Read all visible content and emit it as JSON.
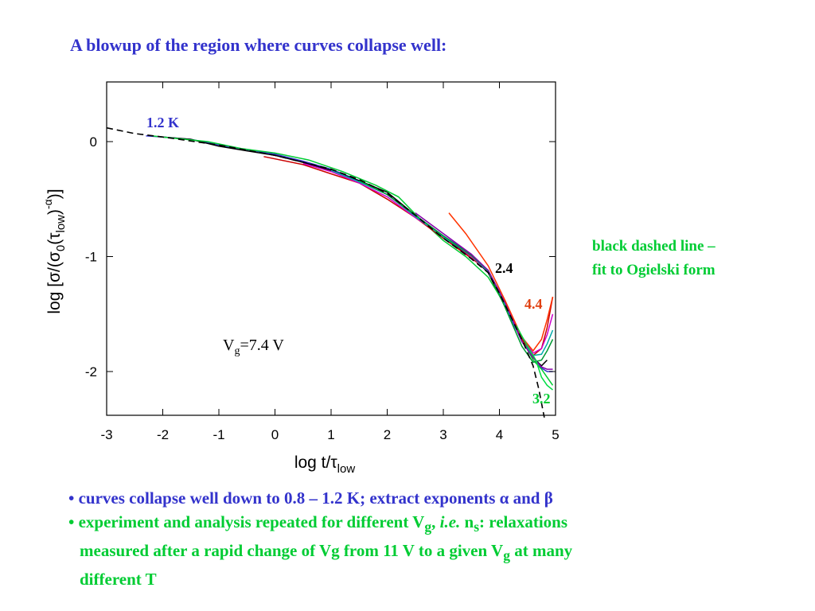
{
  "title": "A blowup of the region where curves collapse well:",
  "note": {
    "line1": "black dashed line –",
    "line2": "fit to Ogielski form"
  },
  "bullets": {
    "b1": {
      "prefix": "• curves collapse well down to 0.8 – 1.2 K; extract exponents ",
      "alpha": "α",
      "mid": " and ",
      "beta": "β"
    },
    "b2": {
      "p1": "• experiment and analysis repeated for different V",
      "sub1": "g",
      "p2": ", ",
      "ie": "i.e.",
      "p3": " n",
      "sub2": "s",
      "p4": ": relaxations",
      "l2a": "measured after a rapid change of Vg from 11 V to a given V",
      "l2sub": "g",
      "l2b": " at many",
      "l3": "different T"
    }
  },
  "chart_data": {
    "type": "line",
    "xlabel": {
      "main": "log t/",
      "tau": "τ",
      "sub": "low"
    },
    "ylabel": {
      "p1": "log [",
      "sigma": "σ",
      "p2": "/(",
      "sigma0": "σ",
      "sub0": "0",
      "p3": "(",
      "tau": "τ",
      "sublow": "low",
      "p4": ")",
      "sup": "-α",
      "p5": ")]"
    },
    "xlim": [
      -3,
      5
    ],
    "ylim": [
      -2.4,
      0.5
    ],
    "xticks": [
      "-3",
      "-2",
      "-1",
      "0",
      "1",
      "2",
      "3",
      "4",
      "5"
    ],
    "yticks": [
      "0",
      "-1",
      "-2"
    ],
    "grid": false,
    "annotations": {
      "t12": "1.2 K",
      "t24": "2.4",
      "t44": "4.4",
      "t32": "3.2",
      "vg_main": "V",
      "vg_sub": "g",
      "vg_rest": "=7.4 V"
    },
    "colors": {
      "t12": "#3333cc",
      "t24": "#000000",
      "t44": "#e04010",
      "t32": "#00cc33"
    },
    "fit": {
      "name": "Ogielski fit",
      "color": "#000000",
      "style": "dashed",
      "x": [
        -3.0,
        -2.5,
        -2.0,
        -1.0,
        0.0,
        1.0,
        1.5,
        2.0,
        2.5,
        3.0,
        3.5,
        3.8,
        4.0,
        4.2,
        4.4,
        4.6,
        4.7,
        4.8
      ],
      "y": [
        0.12,
        0.07,
        0.04,
        -0.03,
        -0.12,
        -0.24,
        -0.33,
        -0.45,
        -0.64,
        -0.84,
        -1.02,
        -1.14,
        -1.32,
        -1.52,
        -1.72,
        -1.95,
        -2.15,
        -2.4
      ]
    },
    "series": [
      {
        "color": "#3333cc",
        "x": [
          -2.3,
          -2.0,
          -1.5,
          -1.0,
          -0.5,
          0.0,
          0.5,
          1.0,
          1.5,
          2.0,
          2.5,
          3.0,
          3.5,
          3.8,
          4.0,
          4.2,
          4.4,
          4.6,
          4.75,
          4.85,
          4.95
        ],
        "y": [
          0.05,
          0.04,
          0.02,
          -0.03,
          -0.07,
          -0.11,
          -0.17,
          -0.24,
          -0.34,
          -0.46,
          -0.64,
          -0.82,
          -0.98,
          -1.14,
          -1.3,
          -1.55,
          -1.72,
          -1.87,
          -1.97,
          -2.0,
          -2.0
        ]
      },
      {
        "color": "#000000",
        "x": [
          -2.0,
          -1.5,
          -1.0,
          -0.5,
          0.0,
          0.5,
          1.0,
          1.5,
          2.0,
          2.5,
          3.0,
          3.5,
          3.8,
          4.0,
          4.2,
          4.4,
          4.6,
          4.75,
          4.85
        ],
        "y": [
          0.04,
          0.02,
          -0.04,
          -0.08,
          -0.12,
          -0.18,
          -0.25,
          -0.34,
          -0.44,
          -0.64,
          -0.84,
          -1.0,
          -1.14,
          -1.34,
          -1.52,
          -1.7,
          -1.88,
          -1.95,
          -1.9
        ]
      },
      {
        "color": "#00cc33",
        "x": [
          -2.2,
          -1.8,
          -1.2,
          -0.6,
          0.0,
          0.6,
          1.2,
          1.8,
          2.2,
          2.6,
          3.0,
          3.4,
          3.8,
          4.1,
          4.4,
          4.6,
          4.75,
          4.85,
          4.95
        ],
        "y": [
          0.05,
          0.03,
          0.0,
          -0.06,
          -0.1,
          -0.16,
          -0.26,
          -0.38,
          -0.48,
          -0.68,
          -0.86,
          -1.0,
          -1.18,
          -1.42,
          -1.72,
          -1.9,
          -1.98,
          -2.05,
          -2.12
        ]
      },
      {
        "color": "#cc0000",
        "x": [
          -0.2,
          0.5,
          1.0,
          1.5,
          2.0,
          2.5,
          3.0,
          3.4,
          3.8,
          4.1,
          4.4,
          4.6,
          4.75,
          4.85,
          4.95
        ],
        "y": [
          -0.13,
          -0.2,
          -0.28,
          -0.36,
          -0.5,
          -0.66,
          -0.84,
          -0.98,
          -1.12,
          -1.42,
          -1.72,
          -1.86,
          -1.8,
          -1.62,
          -1.35
        ]
      },
      {
        "color": "#cc00cc",
        "x": [
          0.5,
          1.0,
          1.5,
          2.0,
          2.5,
          3.0,
          3.5,
          3.8,
          4.1,
          4.4,
          4.6,
          4.75,
          4.85,
          4.95
        ],
        "y": [
          -0.19,
          -0.26,
          -0.36,
          -0.48,
          -0.66,
          -0.82,
          -1.0,
          -1.13,
          -1.4,
          -1.7,
          -1.84,
          -1.8,
          -1.68,
          -1.5
        ]
      },
      {
        "color": "#00aaaa",
        "x": [
          1.0,
          1.5,
          2.0,
          2.5,
          3.0,
          3.5,
          3.8,
          4.1,
          4.4,
          4.6,
          4.75,
          4.85,
          4.95
        ],
        "y": [
          -0.25,
          -0.35,
          -0.46,
          -0.65,
          -0.83,
          -0.99,
          -1.13,
          -1.42,
          -1.74,
          -1.86,
          -1.85,
          -1.76,
          -1.64
        ]
      },
      {
        "color": "#009933",
        "x": [
          1.5,
          2.0,
          2.5,
          3.0,
          3.5,
          3.8,
          4.1,
          4.4,
          4.6,
          4.75,
          4.85,
          4.95
        ],
        "y": [
          -0.34,
          -0.46,
          -0.64,
          -0.82,
          -0.99,
          -1.12,
          -1.44,
          -1.78,
          -1.92,
          -1.9,
          -1.82,
          -1.72
        ]
      },
      {
        "color": "#8800aa",
        "x": [
          2.5,
          3.0,
          3.5,
          3.8,
          4.1,
          4.4,
          4.6,
          4.75,
          4.85,
          4.95
        ],
        "y": [
          -0.62,
          -0.8,
          -0.98,
          -1.12,
          -1.4,
          -1.74,
          -1.88,
          -1.96,
          -1.98,
          -1.98
        ]
      },
      {
        "color": "#ff3300",
        "x": [
          3.1,
          3.4,
          3.8,
          4.1,
          4.4,
          4.6,
          4.75,
          4.85,
          4.95
        ],
        "y": [
          -0.62,
          -0.8,
          -1.08,
          -1.38,
          -1.7,
          -1.82,
          -1.72,
          -1.55,
          -1.35
        ]
      },
      {
        "color": "#00dd44",
        "x": [
          4.3,
          4.5,
          4.65,
          4.75,
          4.85,
          4.95
        ],
        "y": [
          -1.6,
          -1.78,
          -1.9,
          -2.05,
          -2.12,
          -2.16
        ]
      }
    ]
  }
}
